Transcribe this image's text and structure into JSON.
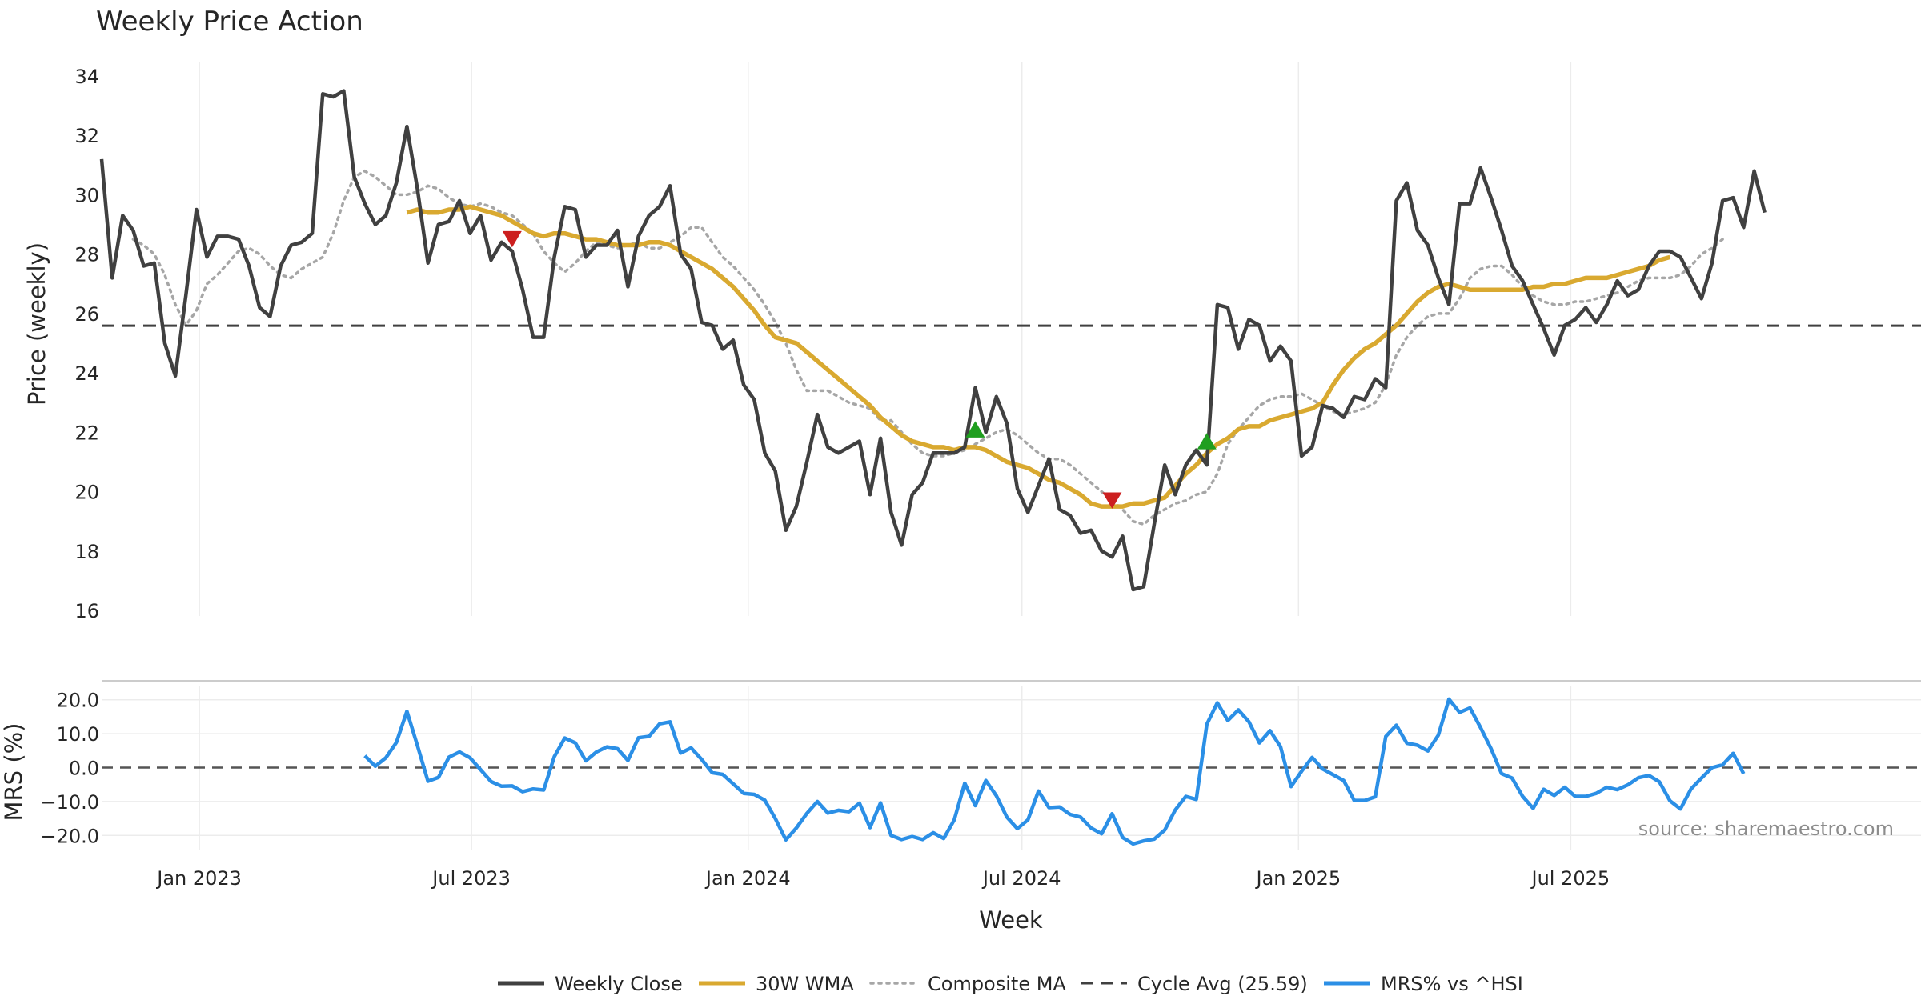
{
  "chart_data": [
    {
      "type": "line",
      "panel": "price",
      "title": "Weekly Price Action",
      "ylabel": "Price (weekly)",
      "ylim": [
        16,
        34
      ],
      "yticks": [
        16,
        18,
        20,
        22,
        24,
        26,
        28,
        30,
        32,
        34
      ],
      "x_start": "2022-10-28",
      "x_step_days": 7,
      "series": [
        {
          "name": "Weekly Close",
          "color": "#404040",
          "values": [
            31.2,
            27.2,
            29.3,
            28.8,
            27.6,
            27.7,
            25.0,
            23.9,
            26.6,
            29.5,
            27.9,
            28.6,
            28.6,
            28.5,
            27.6,
            26.2,
            25.9,
            27.6,
            28.3,
            28.4,
            28.7,
            33.4,
            33.3,
            33.5,
            30.6,
            29.7,
            29.0,
            29.3,
            30.4,
            32.3,
            30.2,
            27.7,
            29.0,
            29.1,
            29.8,
            28.7,
            29.3,
            27.8,
            28.4,
            28.1,
            26.8,
            25.2,
            25.2,
            27.9,
            29.6,
            29.5,
            27.9,
            28.3,
            28.3,
            28.8,
            26.9,
            28.6,
            29.3,
            29.6,
            30.3,
            28.0,
            27.5,
            25.7,
            25.6,
            24.8,
            25.1,
            23.6,
            23.1,
            21.3,
            20.7,
            18.7,
            19.5,
            21.0,
            22.6,
            21.5,
            21.3,
            21.5,
            21.7,
            19.9,
            21.8,
            19.3,
            18.2,
            19.9,
            20.3,
            21.3,
            21.3,
            21.3,
            21.5,
            23.5,
            22.0,
            23.2,
            22.3,
            20.1,
            19.3,
            20.2,
            21.1,
            19.4,
            19.2,
            18.6,
            18.7,
            18.0,
            17.8,
            18.5,
            16.7,
            16.8,
            18.9,
            20.9,
            19.9,
            20.9,
            21.4,
            20.9,
            26.3,
            26.2,
            24.8,
            25.8,
            25.6,
            24.4,
            24.9,
            24.4,
            21.2,
            21.5,
            22.9,
            22.8,
            22.5,
            23.2,
            23.1,
            23.8,
            23.5,
            29.8,
            30.4,
            28.8,
            28.3,
            27.2,
            26.3,
            29.7,
            29.7,
            30.9,
            29.9,
            28.8,
            27.6,
            27.1,
            26.3,
            25.5,
            24.6,
            25.6,
            25.8,
            26.2,
            25.7,
            26.3,
            27.1,
            26.6,
            26.8,
            27.6,
            28.1,
            28.1,
            27.9,
            27.2,
            26.5,
            27.7,
            29.8,
            29.9,
            28.9,
            30.8,
            29.4
          ]
        },
        {
          "name": "30W WMA",
          "color": "#d9a930",
          "start_index": 29,
          "values": [
            29.4,
            29.5,
            29.4,
            29.4,
            29.5,
            29.5,
            29.6,
            29.5,
            29.4,
            29.3,
            29.1,
            28.9,
            28.7,
            28.6,
            28.7,
            28.7,
            28.6,
            28.5,
            28.5,
            28.4,
            28.3,
            28.3,
            28.3,
            28.4,
            28.4,
            28.3,
            28.1,
            27.9,
            27.7,
            27.5,
            27.2,
            26.9,
            26.5,
            26.1,
            25.6,
            25.2,
            25.1,
            25.0,
            24.7,
            24.4,
            24.1,
            23.8,
            23.5,
            23.2,
            22.9,
            22.5,
            22.2,
            21.9,
            21.7,
            21.6,
            21.5,
            21.5,
            21.4,
            21.5,
            21.5,
            21.4,
            21.2,
            21.0,
            20.9,
            20.8,
            20.6,
            20.4,
            20.3,
            20.1,
            19.9,
            19.6,
            19.5,
            19.5,
            19.5,
            19.6,
            19.6,
            19.7,
            19.8,
            20.2,
            20.6,
            20.9,
            21.3,
            21.6,
            21.8,
            22.1,
            22.2,
            22.2,
            22.4,
            22.5,
            22.6,
            22.7,
            22.8,
            23.0,
            23.6,
            24.1,
            24.5,
            24.8,
            25.0,
            25.3,
            25.6,
            26.0,
            26.4,
            26.7,
            26.9,
            27.0,
            26.9,
            26.8,
            26.8,
            26.8,
            26.8,
            26.8,
            26.8,
            26.9,
            26.9,
            27.0,
            27.0,
            27.1,
            27.2,
            27.2,
            27.2,
            27.3,
            27.4,
            27.5,
            27.6,
            27.8,
            27.9
          ]
        },
        {
          "name": "Composite MA",
          "color": "#a6a6a6",
          "start_index": 3,
          "values": [
            28.5,
            28.3,
            28.0,
            27.3,
            26.3,
            25.6,
            26.1,
            27.0,
            27.3,
            27.7,
            28.1,
            28.2,
            28.0,
            27.6,
            27.3,
            27.2,
            27.5,
            27.7,
            27.9,
            28.7,
            29.8,
            30.6,
            30.8,
            30.6,
            30.3,
            30.0,
            30.0,
            30.1,
            30.3,
            30.2,
            29.9,
            29.7,
            29.6,
            29.7,
            29.6,
            29.4,
            29.3,
            29.0,
            28.7,
            28.1,
            27.7,
            27.4,
            27.7,
            28.1,
            28.4,
            28.3,
            28.2,
            28.3,
            28.4,
            28.2,
            28.2,
            28.4,
            28.6,
            28.9,
            28.9,
            28.4,
            27.9,
            27.6,
            27.2,
            26.8,
            26.3,
            25.7,
            25.0,
            24.1,
            23.4,
            23.4,
            23.4,
            23.2,
            23.0,
            22.9,
            22.8,
            22.4,
            22.4,
            22.0,
            21.6,
            21.3,
            21.2,
            21.2,
            21.3,
            21.4,
            21.6,
            21.8,
            22.0,
            22.1,
            21.9,
            21.6,
            21.3,
            21.1,
            21.1,
            20.9,
            20.6,
            20.3,
            20.0,
            19.7,
            19.4,
            19.0,
            18.9,
            19.2,
            19.4,
            19.6,
            19.7,
            19.9,
            20.0,
            20.6,
            21.6,
            22.1,
            22.5,
            22.9,
            23.1,
            23.2,
            23.2,
            23.3,
            23.1,
            22.9,
            22.7,
            22.6,
            22.7,
            22.8,
            23.0,
            23.6,
            24.6,
            25.2,
            25.6,
            25.9,
            26.0,
            26.0,
            26.5,
            27.2,
            27.5,
            27.6,
            27.6,
            27.3,
            26.9,
            26.6,
            26.4,
            26.3,
            26.3,
            26.4,
            26.4,
            26.5,
            26.6,
            26.7,
            26.9,
            27.1,
            27.2,
            27.2,
            27.2,
            27.3,
            27.6,
            28.0,
            28.2,
            28.5
          ]
        },
        {
          "name": "Cycle Avg (25.59)",
          "color": "#404040",
          "constant": 25.59
        }
      ],
      "markers": [
        {
          "type": "sell",
          "week_index": 39,
          "value": 28.5,
          "color": "#cc1f1f"
        },
        {
          "type": "buy",
          "week_index": 83,
          "value": 22.1,
          "color": "#1f9e1f"
        },
        {
          "type": "sell",
          "week_index": 96,
          "value": 19.7,
          "color": "#cc1f1f"
        },
        {
          "type": "buy",
          "week_index": 105,
          "value": 21.7,
          "color": "#1f9e1f"
        }
      ],
      "source": "source: sharemaestro.com"
    },
    {
      "type": "line",
      "panel": "mrs",
      "ylabel": "MRS (%)",
      "xlabel": "Week",
      "ylim": [
        -23,
        23
      ],
      "yticks": [
        -20,
        -10,
        0,
        10,
        20
      ],
      "ytick_labels": [
        "−20.0",
        "−10.0",
        "0.0",
        "10.0",
        "20.0"
      ],
      "series": [
        {
          "name": "MRS% vs ^HSI",
          "color": "#2b8fe6",
          "start_index": 25,
          "values": [
            3.5,
            0.4,
            2.9,
            7.4,
            16.6,
            6.5,
            -4.0,
            -2.9,
            3.1,
            4.6,
            2.9,
            -0.6,
            -4.1,
            -5.5,
            -5.4,
            -7.1,
            -6.3,
            -6.6,
            3.2,
            8.7,
            7.3,
            2.0,
            4.6,
            6.1,
            5.6,
            2.1,
            8.8,
            9.2,
            12.9,
            13.5,
            4.3,
            5.8,
            2.4,
            -1.5,
            -2.0,
            -4.8,
            -7.6,
            -7.9,
            -9.6,
            -15.0,
            -21.3,
            -17.8,
            -13.5,
            -10.0,
            -13.4,
            -12.6,
            -13.0,
            -10.5,
            -17.7,
            -10.4,
            -20.0,
            -21.2,
            -20.3,
            -21.2,
            -19.2,
            -20.9,
            -15.4,
            -4.6,
            -11.2,
            -3.8,
            -8.3,
            -14.6,
            -18.0,
            -15.4,
            -6.9,
            -11.8,
            -11.6,
            -13.8,
            -14.6,
            -17.8,
            -19.5,
            -13.6,
            -20.6,
            -22.5,
            -21.6,
            -21.1,
            -18.4,
            -12.5,
            -8.5,
            -9.4,
            12.8,
            19.1,
            13.9,
            17.0,
            13.5,
            7.3,
            10.9,
            6.2,
            -5.6,
            -1.1,
            3.0,
            -0.4,
            -2.1,
            -3.8,
            -9.7,
            -9.7,
            -8.6,
            9.2,
            12.5,
            7.2,
            6.6,
            4.9,
            9.6,
            20.2,
            16.3,
            17.6,
            11.8,
            5.6,
            -1.8,
            -3.1,
            -8.5,
            -12.0,
            -6.4,
            -8.2,
            -5.8,
            -8.5,
            -8.5,
            -7.6,
            -5.8,
            -6.5,
            -5.1,
            -3.0,
            -2.3,
            -4.2,
            -9.8,
            -12.2,
            -6.3,
            -3.1,
            0.0,
            0.8,
            4.2,
            -1.8
          ]
        }
      ],
      "xticks": [
        {
          "date": "2023-01-01",
          "label": "Jan 2023"
        },
        {
          "date": "2023-07-01",
          "label": "Jul 2023"
        },
        {
          "date": "2024-01-01",
          "label": "Jan 2024"
        },
        {
          "date": "2024-07-01",
          "label": "Jul 2024"
        },
        {
          "date": "2025-01-01",
          "label": "Jan 2025"
        },
        {
          "date": "2025-07-01",
          "label": "Jul 2025"
        }
      ]
    }
  ],
  "legend": [
    {
      "label": "Weekly Close",
      "style": "solid",
      "color": "#404040"
    },
    {
      "label": "30W WMA",
      "style": "solid",
      "color": "#d9a930"
    },
    {
      "label": "Composite MA",
      "style": "dotted",
      "color": "#a6a6a6"
    },
    {
      "label": "Cycle Avg (25.59)",
      "style": "dashed",
      "color": "#404040"
    },
    {
      "label": "MRS% vs ^HSI",
      "style": "solid",
      "color": "#2b8fe6"
    }
  ]
}
